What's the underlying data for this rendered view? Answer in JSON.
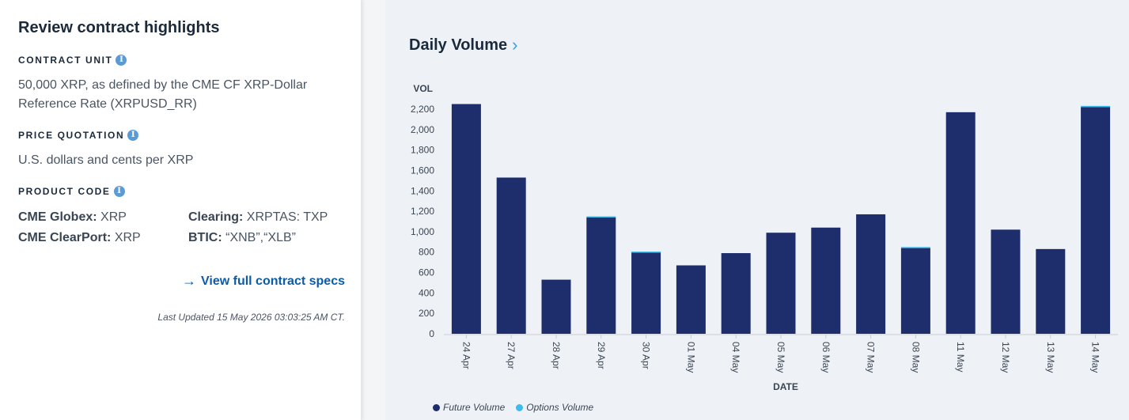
{
  "left_card": {
    "title": "Review contract highlights",
    "contract_unit": {
      "label": "CONTRACT UNIT",
      "text": "50,000 XRP, as defined by the CME CF XRP-Dollar Reference Rate (XRPUSD_RR)"
    },
    "price_quotation": {
      "label": "PRICE QUOTATION",
      "text": "U.S. dollars and cents per XRP"
    },
    "product_code": {
      "label": "PRODUCT CODE",
      "globex_key": "CME Globex:",
      "globex_val": "XRP",
      "clearport_key": "CME ClearPort:",
      "clearport_val": "XRP",
      "clearing_key": "Clearing:",
      "clearing_val": "XRPTAS: TXP",
      "btic_key": "BTIC:",
      "btic_val": "“XNB”,“XLB”"
    },
    "info_icon": "info-icon",
    "view_link": "View full contract specs",
    "last_updated": "Last Updated 15 May 2026 03:03:25 AM CT."
  },
  "chart_panel": {
    "title": "Daily Volume",
    "title_icon": "chevron-right-icon"
  },
  "chart_data": {
    "type": "bar",
    "stacked": true,
    "categories": [
      "24 Apr",
      "27 Apr",
      "28 Apr",
      "29 Apr",
      "30 Apr",
      "01 May",
      "04 May",
      "05 May",
      "06 May",
      "07 May",
      "08 May",
      "11 May",
      "12 May",
      "13 May",
      "14 May"
    ],
    "series": [
      {
        "name": "Future Volume",
        "color": "#1e2d6b",
        "values": [
          2250,
          1530,
          530,
          1140,
          800,
          670,
          790,
          990,
          1040,
          1170,
          840,
          2170,
          1020,
          830,
          2220
        ]
      },
      {
        "name": "Options Volume",
        "color": "#3dbbea",
        "values": [
          0,
          0,
          0,
          10,
          5,
          0,
          0,
          0,
          0,
          0,
          10,
          0,
          0,
          0,
          12
        ]
      }
    ],
    "ylabel": "VOL",
    "xlabel": "DATE",
    "ylim": [
      0,
      2200
    ],
    "yticks": [
      0,
      200,
      400,
      600,
      800,
      "1,000",
      "1,200",
      "1,400",
      "1,600",
      "1,800",
      "2,000",
      "2,200"
    ],
    "ytick_values": [
      0,
      200,
      400,
      600,
      800,
      1000,
      1200,
      1400,
      1600,
      1800,
      2000,
      2200
    ],
    "legend_position": "bottom-left"
  }
}
